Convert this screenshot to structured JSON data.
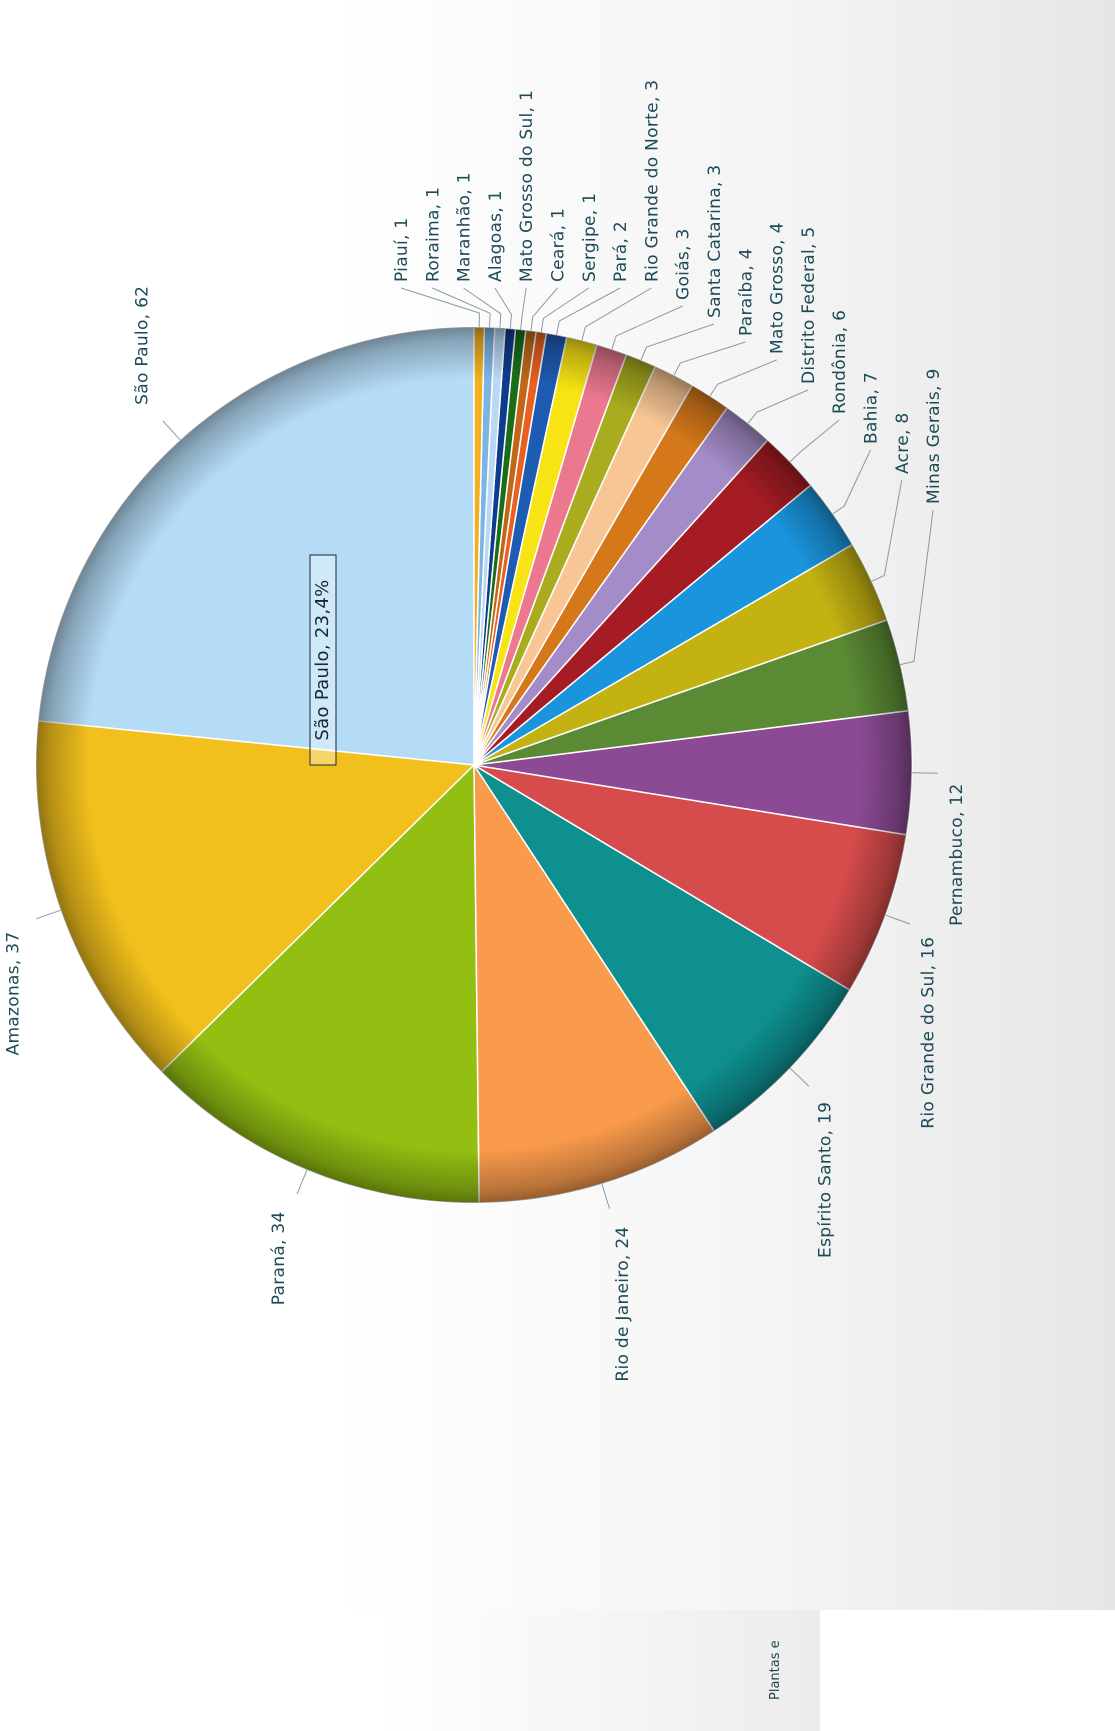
{
  "chart_data": {
    "type": "pie",
    "title": "",
    "slices": [
      {
        "name": "São Paulo",
        "value": 62,
        "color": "#b5dcf7"
      },
      {
        "name": "Amazonas",
        "value": 37,
        "color": "#f2c01c"
      },
      {
        "name": "Paraná",
        "value": 34,
        "color": "#93bf12"
      },
      {
        "name": "Rio de Janeiro",
        "value": 24,
        "color": "#f99a4c"
      },
      {
        "name": "Espírito Santo",
        "value": 19,
        "color": "#0e9090"
      },
      {
        "name": "Rio Grande do Sul",
        "value": 16,
        "color": "#d64b4b"
      },
      {
        "name": "Pernambuco",
        "value": 12,
        "color": "#8c4a94"
      },
      {
        "name": "Minas Gerais",
        "value": 9,
        "color": "#5b8a34"
      },
      {
        "name": "Acre",
        "value": 8,
        "color": "#c4b212"
      },
      {
        "name": "Bahia",
        "value": 7,
        "color": "#1a94dc"
      },
      {
        "name": "Rondônia",
        "value": 6,
        "color": "#a51c24"
      },
      {
        "name": "Distrito Federal",
        "value": 5,
        "color": "#a48cc8"
      },
      {
        "name": "Mato Grosso",
        "value": 4,
        "color": "#d4781a"
      },
      {
        "name": "Paraíba",
        "value": 4,
        "color": "#f8c694"
      },
      {
        "name": "Santa Catarina",
        "value": 3,
        "color": "#a8ac1e"
      },
      {
        "name": "Goiás",
        "value": 3,
        "color": "#ec7890"
      },
      {
        "name": "Rio Grande do Norte",
        "value": 3,
        "color": "#f8e414"
      },
      {
        "name": "Pará",
        "value": 2,
        "color": "#1e5cb4"
      },
      {
        "name": "Sergipe",
        "value": 1,
        "color": "#ea6022"
      },
      {
        "name": "Ceará",
        "value": 1,
        "color": "#c06818"
      },
      {
        "name": "Mato Grosso do Sul",
        "value": 1,
        "color": "#1a6e1a"
      },
      {
        "name": "Alagoas",
        "value": 1,
        "color": "#0e3c8c"
      },
      {
        "name": "Maranhão",
        "value": 1,
        "color": "#b8d8f4"
      },
      {
        "name": "Roraima",
        "value": 1,
        "color": "#7cb4e4"
      },
      {
        "name": "Piauí",
        "value": 1,
        "color": "#f0b020"
      }
    ],
    "highlight": {
      "name": "São Paulo",
      "percent": "23,4%"
    },
    "legend": "none"
  },
  "footer": {
    "text": "Plantas e"
  }
}
